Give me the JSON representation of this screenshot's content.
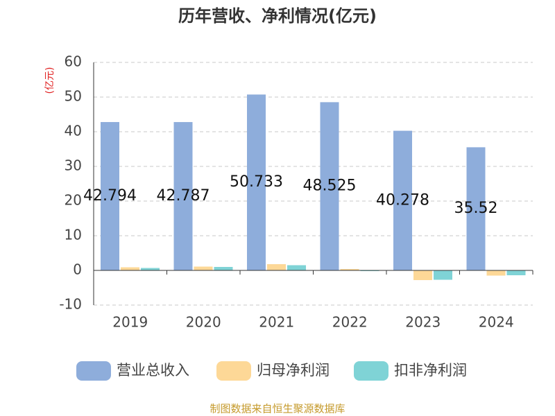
{
  "chart_data": {
    "type": "bar",
    "title": "历年营收、净利情况(亿元)",
    "y_label": "(亿元)",
    "source": "制图数据来自恒生聚源数据库",
    "categories": [
      "2019",
      "2020",
      "2021",
      "2022",
      "2023",
      "2024"
    ],
    "series": [
      {
        "name": "营业总收入",
        "color": "#8eaddb",
        "values": [
          42.794,
          42.787,
          50.733,
          48.525,
          40.278,
          35.52
        ],
        "show_labels": true
      },
      {
        "name": "归母净利润",
        "color": "#fdd897",
        "values": [
          0.9,
          1.1,
          1.8,
          0.4,
          -2.8,
          -1.5
        ]
      },
      {
        "name": "扣非净利润",
        "color": "#7fd3d6",
        "values": [
          0.7,
          1.0,
          1.5,
          -0.2,
          -2.7,
          -1.4
        ]
      }
    ],
    "ylim": [
      -10,
      60
    ],
    "yticks": [
      -10,
      0,
      10,
      20,
      30,
      40,
      50,
      60
    ],
    "grid": true
  }
}
